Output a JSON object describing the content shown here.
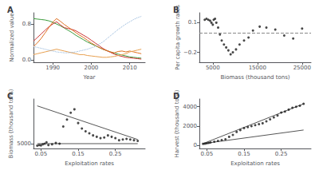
{
  "chart_data": [
    {
      "type": "line",
      "title": "A",
      "xlabel": "Year",
      "ylabel": "Normalized value",
      "x": [
        1985,
        1986,
        1987,
        1988,
        1989,
        1990,
        1991,
        1992,
        1993,
        1994,
        1995,
        1996,
        1997,
        1998,
        1999,
        2000,
        2001,
        2002,
        2003,
        2004,
        2005,
        2006,
        2007,
        2008,
        2009,
        2010,
        2011,
        2012,
        2013
      ],
      "series": [
        {
          "color": "#3a9a3a",
          "values": [
            0.92,
            0.91,
            0.9,
            0.89,
            0.87,
            0.84,
            0.8,
            0.76,
            0.71,
            0.66,
            0.61,
            0.55,
            0.5,
            0.45,
            0.4,
            0.36,
            0.32,
            0.28,
            0.24,
            0.21,
            0.18,
            0.15,
            0.13,
            0.11,
            0.09,
            0.07,
            0.06,
            0.05,
            0.04
          ]
        },
        {
          "color": "#cc3333",
          "values": [
            0.42,
            0.5,
            0.58,
            0.66,
            0.74,
            0.8,
            0.85,
            0.78,
            0.72,
            0.7,
            0.68,
            0.65,
            0.6,
            0.55,
            0.5,
            0.44,
            0.38,
            0.32,
            0.26,
            0.21,
            0.17,
            0.13,
            0.1,
            0.08,
            0.06,
            0.05,
            0.04,
            0.03,
            0.02
          ]
        },
        {
          "color": "#e07020",
          "values": [
            0.3,
            0.38,
            0.48,
            0.6,
            0.72,
            0.84,
            0.92,
            0.86,
            0.79,
            0.73,
            0.67,
            0.61,
            0.55,
            0.5,
            0.44,
            0.38,
            0.33,
            0.28,
            0.24,
            0.21,
            0.18,
            0.16,
            0.19,
            0.2,
            0.18,
            0.2,
            0.18,
            0.16,
            0.14
          ]
        },
        {
          "color": "#e8a050",
          "values": [
            0.12,
            0.14,
            0.16,
            0.18,
            0.2,
            0.22,
            0.24,
            0.22,
            0.2,
            0.18,
            0.16,
            0.14,
            0.12,
            0.12,
            0.1,
            0.09,
            0.08,
            0.07,
            0.06,
            0.06,
            0.07,
            0.08,
            0.1,
            0.12,
            0.14,
            0.18,
            0.2,
            0.22,
            0.24
          ]
        },
        {
          "color": "#8ab0d8",
          "line_style": "dotted",
          "values": [
            0.3,
            0.28,
            0.26,
            0.24,
            0.22,
            0.2,
            0.18,
            0.17,
            0.16,
            0.16,
            0.17,
            0.18,
            0.2,
            0.22,
            0.24,
            0.27,
            0.3,
            0.35,
            0.4,
            0.47,
            0.54,
            0.61,
            0.68,
            0.74,
            0.8,
            0.85,
            0.9,
            0.94,
            0.97
          ]
        }
      ],
      "xlim": [
        1985,
        2014
      ],
      "ylim": [
        -0.05,
        1.05
      ],
      "xticks": [
        1990,
        2000,
        2010
      ],
      "yticks": [
        {
          "value": 0,
          "label": "0.0"
        },
        0.8
      ],
      "grid": false
    },
    {
      "type": "scatter",
      "title": "B",
      "xlabel": "Biomass (thousand tons)",
      "ylabel": "Per capita growth rates",
      "series": [
        {
          "type": "scatter",
          "color": "#1a1a1a",
          "marker": "circle",
          "x": [
            3200,
            3600,
            4000,
            4400,
            4700,
            5000,
            5200,
            5500,
            5800,
            6200,
            6600,
            7000,
            7500,
            8000,
            8500,
            9000,
            9500,
            10200,
            11000,
            12000,
            13000,
            14000,
            15500,
            17000,
            19000,
            21000,
            23000,
            25000
          ],
          "values": [
            0.13,
            0.14,
            0.13,
            0.12,
            0.1,
            0.08,
            0.13,
            0.14,
            0.1,
            0.05,
            -0.02,
            -0.08,
            -0.12,
            -0.15,
            -0.18,
            -0.22,
            -0.2,
            -0.17,
            -0.12,
            -0.08,
            -0.05,
            0.02,
            0.06,
            0.05,
            0.03,
            -0.03,
            -0.06,
            0.04
          ]
        },
        {
          "type": "hline",
          "color": "#888888",
          "line_style": "dashed",
          "values": [
            0.0
          ]
        }
      ],
      "xlim": [
        2000,
        27000
      ],
      "ylim": [
        -0.3,
        0.2
      ],
      "xticks": [
        5000,
        15000,
        25000
      ],
      "yticks": [
        {
          "value": -0.2,
          "label": "−0.2"
        },
        0.1
      ],
      "grid": false
    },
    {
      "type": "scatter",
      "title": "C",
      "xlabel": "Exploitation rates",
      "ylabel": "Biomass (thousand tons)",
      "series": [
        {
          "type": "scatter",
          "color": "#1a1a1a",
          "marker": "circle",
          "x": [
            0.04,
            0.045,
            0.05,
            0.055,
            0.06,
            0.065,
            0.07,
            0.08,
            0.09,
            0.1,
            0.11,
            0.12,
            0.13,
            0.14,
            0.15,
            0.16,
            0.17,
            0.18,
            0.19,
            0.2,
            0.21,
            0.22,
            0.23,
            0.24,
            0.25,
            0.26,
            0.27,
            0.28,
            0.29,
            0.3,
            0.31
          ],
          "values": [
            4700,
            4800,
            4750,
            4900,
            5000,
            5200,
            4800,
            4900,
            5100,
            5000,
            7500,
            8500,
            9500,
            10000,
            8000,
            7200,
            6800,
            6500,
            6200,
            6000,
            5800,
            5900,
            6200,
            6000,
            5800,
            5500,
            5600,
            5700,
            5600,
            5500,
            5400
          ]
        },
        {
          "type": "line",
          "color": "#555555",
          "x": [
            0.04,
            0.31
          ],
          "values": [
            10500,
            5600
          ]
        },
        {
          "type": "line",
          "color": "#555555",
          "x": [
            0.04,
            0.31
          ],
          "values": [
            5000,
            5000
          ]
        }
      ],
      "xlim": [
        0.03,
        0.33
      ],
      "ylim": [
        4300,
        11500
      ],
      "xticks": [
        0.05,
        0.15,
        0.25
      ],
      "yticks": [
        5000
      ],
      "grid": false
    },
    {
      "type": "scatter",
      "title": "D",
      "xlabel": "Exploitation rates",
      "ylabel": "Harvest (thousand tons)",
      "series": [
        {
          "type": "scatter",
          "color": "#1a1a1a",
          "marker": "circle",
          "x": [
            0.04,
            0.045,
            0.05,
            0.055,
            0.06,
            0.07,
            0.08,
            0.09,
            0.1,
            0.11,
            0.12,
            0.13,
            0.14,
            0.15,
            0.16,
            0.17,
            0.18,
            0.19,
            0.2,
            0.21,
            0.22,
            0.23,
            0.24,
            0.25,
            0.26,
            0.27,
            0.28,
            0.29,
            0.3,
            0.31
          ],
          "values": [
            180,
            200,
            240,
            280,
            320,
            400,
            480,
            560,
            650,
            900,
            1100,
            1400,
            1600,
            1800,
            1900,
            2000,
            2100,
            2200,
            2300,
            2500,
            2700,
            2900,
            3100,
            3400,
            3500,
            3700,
            3900,
            4000,
            4100,
            4300
          ]
        },
        {
          "type": "line",
          "color": "#555555",
          "x": [
            0.04,
            0.31
          ],
          "values": [
            200,
            4300
          ]
        },
        {
          "type": "line",
          "color": "#555555",
          "x": [
            0.04,
            0.31
          ],
          "values": [
            200,
            1600
          ]
        }
      ],
      "xlim": [
        0.03,
        0.33
      ],
      "ylim": [
        -300,
        4800
      ],
      "xticks": [
        0.05,
        0.15,
        0.25
      ],
      "yticks": [
        0,
        2000,
        4000
      ],
      "grid": false
    }
  ]
}
